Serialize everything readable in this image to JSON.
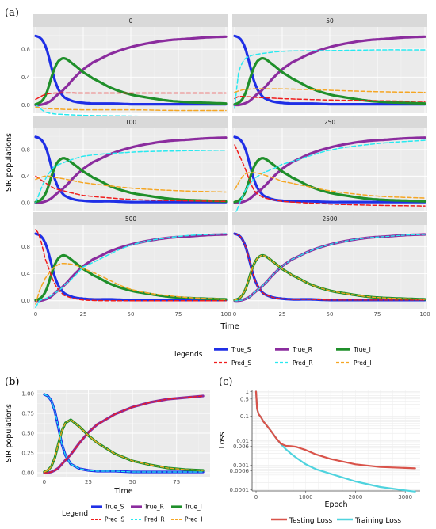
{
  "panel_labels": {
    "a": "(a)",
    "b": "(b)",
    "c": "(c)"
  },
  "colors": {
    "True_S": "#1f2fe6",
    "True_R": "#8b2c9e",
    "True_I": "#1f8f2a",
    "Pred_S": "#f01c1c",
    "Pred_R": "#28e9f0",
    "Pred_I": "#f5a623",
    "Testing": "#d9534a",
    "Training": "#4fd3de"
  },
  "chart_data": [
    {
      "type": "line",
      "id": "a",
      "facets": [
        "0",
        "50",
        "100",
        "250",
        "500",
        "2500"
      ],
      "xlabel": "Time",
      "ylabel": "SIR populations",
      "xlim": [
        0,
        100
      ],
      "xticks": [
        "0",
        "25",
        "50",
        "75",
        "100"
      ],
      "yticks": [
        "0.0",
        "0.4",
        "0.8"
      ],
      "legend_title": "legends",
      "legend": [
        "True_S",
        "True_R",
        "True_I",
        "Pred_S",
        "Pred_R",
        "Pred_I"
      ],
      "series_true": {
        "x": [
          0,
          2,
          4,
          6,
          8,
          10,
          12,
          15,
          20,
          25,
          30,
          40,
          50,
          60,
          70,
          80,
          90,
          100
        ],
        "True_S": [
          0.99,
          0.97,
          0.91,
          0.78,
          0.57,
          0.36,
          0.22,
          0.11,
          0.05,
          0.03,
          0.02,
          0.02,
          0.01,
          0.01,
          0.01,
          0.01,
          0.01,
          0.01
        ],
        "True_I": [
          0.01,
          0.03,
          0.08,
          0.19,
          0.37,
          0.53,
          0.63,
          0.67,
          0.58,
          0.47,
          0.38,
          0.24,
          0.15,
          0.1,
          0.06,
          0.04,
          0.03,
          0.02
        ],
        "True_R": [
          0.0,
          0.0,
          0.01,
          0.03,
          0.06,
          0.11,
          0.16,
          0.23,
          0.38,
          0.51,
          0.61,
          0.74,
          0.83,
          0.89,
          0.93,
          0.95,
          0.97,
          0.98
        ]
      },
      "facet_preds": [
        {
          "x": [
            0,
            5,
            10,
            25,
            50,
            75,
            100
          ],
          "Pred_S": [
            0.08,
            0.15,
            0.17,
            0.17,
            0.17,
            0.17,
            0.17
          ],
          "Pred_R": [
            0.0,
            -0.1,
            -0.13,
            -0.15,
            -0.16,
            -0.17,
            -0.17
          ],
          "Pred_I": [
            -0.03,
            -0.05,
            -0.06,
            -0.07,
            -0.07,
            -0.08,
            -0.08
          ]
        },
        {
          "x": [
            0,
            2,
            5,
            10,
            25,
            50,
            75,
            100
          ],
          "Pred_S": [
            0.09,
            0.12,
            0.12,
            0.11,
            0.09,
            0.07,
            0.06,
            0.05
          ],
          "Pred_R": [
            -0.05,
            0.45,
            0.65,
            0.72,
            0.77,
            0.78,
            0.79,
            0.79
          ],
          "Pred_I": [
            0.18,
            0.2,
            0.22,
            0.23,
            0.23,
            0.21,
            0.19,
            0.18
          ]
        },
        {
          "x": [
            0,
            5,
            10,
            25,
            50,
            75,
            100
          ],
          "Pred_S": [
            0.4,
            0.3,
            0.21,
            0.11,
            0.05,
            0.03,
            0.02
          ],
          "Pred_R": [
            0.0,
            0.35,
            0.55,
            0.7,
            0.76,
            0.78,
            0.79
          ],
          "Pred_I": [
            0.35,
            0.4,
            0.38,
            0.3,
            0.22,
            0.18,
            0.16
          ]
        },
        {
          "x": [
            0,
            5,
            10,
            15,
            25,
            50,
            75,
            100
          ],
          "Pred_S": [
            0.87,
            0.55,
            0.2,
            0.08,
            0.02,
            -0.02,
            -0.04,
            -0.05
          ],
          "Pred_R": [
            -0.2,
            0.15,
            0.35,
            0.45,
            0.58,
            0.79,
            0.89,
            0.94
          ],
          "Pred_I": [
            0.2,
            0.42,
            0.45,
            0.42,
            0.32,
            0.18,
            0.1,
            0.07
          ]
        },
        {
          "x": [
            0,
            2,
            5,
            10,
            15,
            25,
            50,
            75,
            100
          ],
          "Pred_S": [
            1.05,
            0.95,
            0.62,
            0.25,
            0.08,
            0.01,
            0.0,
            0.0,
            0.0
          ],
          "Pred_R": [
            -0.1,
            0.0,
            0.03,
            0.11,
            0.23,
            0.5,
            0.82,
            0.95,
            0.99
          ],
          "Pred_I": [
            -0.05,
            0.15,
            0.33,
            0.5,
            0.55,
            0.47,
            0.17,
            0.06,
            0.02
          ]
        },
        {
          "same_as_true": true
        }
      ]
    },
    {
      "type": "line",
      "id": "b",
      "xlabel": "Time",
      "ylabel": "SIR populations",
      "xlim": [
        -4,
        94
      ],
      "xticks": [
        "0",
        "25",
        "50",
        "75"
      ],
      "yticks": [
        "0.00",
        "0.25",
        "0.50",
        "0.75",
        "1.00"
      ],
      "legend_title": "Legend",
      "legend": [
        "True_S",
        "True_R",
        "True_I",
        "Pred_S",
        "Pred_R",
        "Pred_I"
      ],
      "x": [
        0,
        2,
        4,
        6,
        8,
        10,
        12,
        15,
        20,
        25,
        30,
        40,
        50,
        60,
        70,
        80,
        90
      ],
      "True_S": [
        0.99,
        0.97,
        0.91,
        0.78,
        0.57,
        0.36,
        0.22,
        0.11,
        0.05,
        0.03,
        0.02,
        0.02,
        0.01,
        0.01,
        0.01,
        0.01,
        0.01
      ],
      "True_I": [
        0.01,
        0.03,
        0.08,
        0.19,
        0.37,
        0.53,
        0.63,
        0.67,
        0.58,
        0.47,
        0.38,
        0.24,
        0.15,
        0.1,
        0.06,
        0.04,
        0.03
      ],
      "True_R": [
        0.0,
        0.0,
        0.01,
        0.03,
        0.06,
        0.11,
        0.16,
        0.23,
        0.38,
        0.51,
        0.61,
        0.74,
        0.83,
        0.89,
        0.93,
        0.95,
        0.97
      ]
    },
    {
      "type": "line",
      "id": "c",
      "xlabel": "Epoch",
      "ylabel": "Loss",
      "log_y": true,
      "xlim": [
        -80,
        3300
      ],
      "ylim": [
        0.0001,
        1
      ],
      "xticks": [
        0,
        1000,
        2000,
        3000
      ],
      "yticks": [
        "1",
        "0.5",
        "0.1",
        "0.01",
        "0.006",
        "0.001",
        "0.0006",
        "0.0001"
      ],
      "series": [
        {
          "name": "Testing Loss",
          "x": [
            0,
            20,
            50,
            100,
            150,
            200,
            300,
            400,
            500,
            600,
            700,
            800,
            1000,
            1200,
            1500,
            2000,
            2500,
            3000,
            3200
          ],
          "y": [
            1.0,
            0.2,
            0.12,
            0.09,
            0.06,
            0.045,
            0.025,
            0.013,
            0.0075,
            0.0062,
            0.006,
            0.0057,
            0.0042,
            0.0028,
            0.0018,
            0.0011,
            0.00085,
            0.00078,
            0.00075
          ]
        },
        {
          "name": "Training Loss",
          "x": [
            0,
            20,
            50,
            100,
            150,
            200,
            300,
            400,
            500,
            600,
            700,
            800,
            1000,
            1200,
            1500,
            2000,
            2500,
            3000,
            3200
          ],
          "y": [
            1.0,
            0.2,
            0.12,
            0.09,
            0.06,
            0.045,
            0.025,
            0.013,
            0.0072,
            0.0045,
            0.003,
            0.0021,
            0.0011,
            0.0007,
            0.00045,
            0.00022,
            0.00013,
            9.5e-05,
            8.5e-05
          ]
        }
      ]
    }
  ]
}
